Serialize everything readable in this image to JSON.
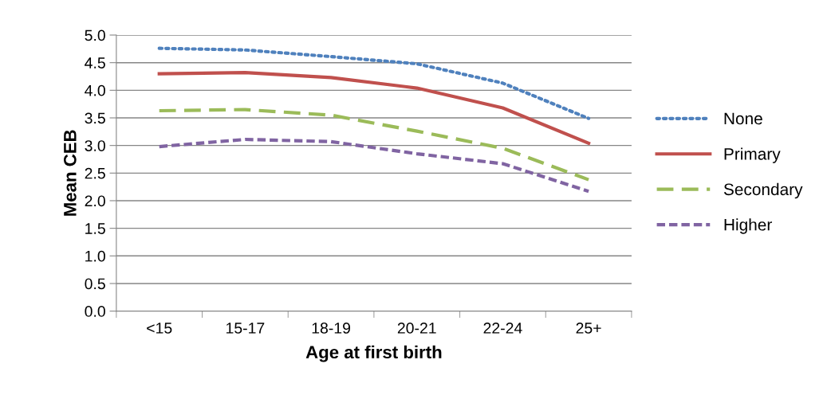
{
  "chart_data": {
    "type": "line",
    "xlabel": "Age at first birth",
    "ylabel": "Mean CEB",
    "categories": [
      "<15",
      "15-17",
      "18-19",
      "20-21",
      "22-24",
      "25+"
    ],
    "series": [
      {
        "name": "None",
        "color": "#4f81bd",
        "line_style": "dotted",
        "values": [
          4.76,
          4.73,
          4.61,
          4.48,
          4.13,
          3.49
        ]
      },
      {
        "name": "Primary",
        "color": "#c0504d",
        "line_style": "solid",
        "values": [
          4.3,
          4.32,
          4.23,
          4.04,
          3.68,
          3.04
        ]
      },
      {
        "name": "Secondary",
        "color": "#9bbb59",
        "line_style": "dashed",
        "values": [
          3.63,
          3.65,
          3.55,
          3.26,
          2.95,
          2.38
        ]
      },
      {
        "name": "Higher",
        "color": "#8064a2",
        "line_style": "dashed_short",
        "values": [
          2.98,
          3.11,
          3.07,
          2.85,
          2.67,
          2.17
        ]
      }
    ],
    "ylim": [
      0,
      5
    ],
    "yticks": [
      {
        "value": 0,
        "label": "0.0"
      },
      {
        "value": 0.5,
        "label": "0.5"
      },
      {
        "value": 1,
        "label": "1.0"
      },
      {
        "value": 1.5,
        "label": "1.5"
      },
      {
        "value": 2,
        "label": "2.0"
      },
      {
        "value": 2.5,
        "label": "2.5"
      },
      {
        "value": 3,
        "label": "3.0"
      },
      {
        "value": 3.5,
        "label": "3.5"
      },
      {
        "value": 4,
        "label": "4.0"
      },
      {
        "value": 4.5,
        "label": "4.5"
      },
      {
        "value": 5,
        "label": "5.0"
      }
    ],
    "grid": "y",
    "legend": "right",
    "marker": "none"
  }
}
